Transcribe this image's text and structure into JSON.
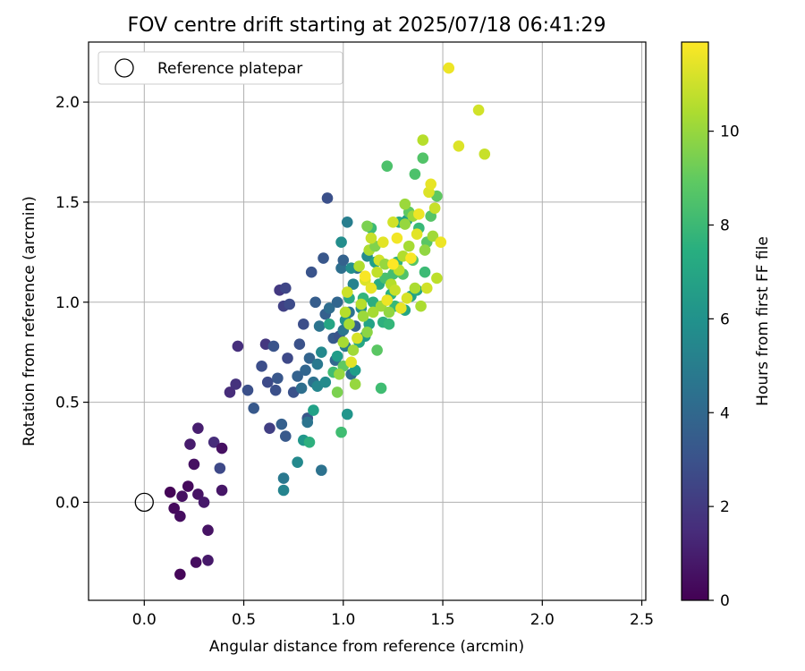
{
  "chart_data": {
    "type": "scatter",
    "title": "FOV centre drift starting at 2025/07/18 06:41:29",
    "xlabel": "Angular distance from reference (arcmin)",
    "ylabel": "Rotation from reference (arcmin)",
    "xlim": [
      -0.28,
      2.52
    ],
    "ylim": [
      -0.49,
      2.3
    ],
    "xticks": [
      "0.0",
      "0.5",
      "1.0",
      "1.5",
      "2.0",
      "2.5"
    ],
    "yticks": [
      "0.0",
      "0.5",
      "1.0",
      "1.5",
      "2.0"
    ],
    "grid": true,
    "legend": {
      "placement": "top-left",
      "entries": [
        "Reference platepar"
      ]
    },
    "reference_point": {
      "x": 0.0,
      "y": 0.0
    },
    "colorbar": {
      "label": "Hours from first FF file",
      "range": [
        0,
        11.9
      ],
      "ticks": [
        "0",
        "2",
        "4",
        "6",
        "8",
        "10"
      ],
      "colormap": "viridis"
    },
    "points": [
      [
        0.13,
        0.05,
        0.1
      ],
      [
        0.15,
        -0.03,
        0.3
      ],
      [
        0.18,
        -0.07,
        0.4
      ],
      [
        0.19,
        0.03,
        0.5
      ],
      [
        0.22,
        0.08,
        0.3
      ],
      [
        0.27,
        0.04,
        0.6
      ],
      [
        0.3,
        0.0,
        0.8
      ],
      [
        0.32,
        -0.14,
        0.6
      ],
      [
        0.26,
        -0.3,
        0.4
      ],
      [
        0.32,
        -0.29,
        0.8
      ],
      [
        0.18,
        -0.36,
        0.2
      ],
      [
        0.39,
        0.06,
        0.7
      ],
      [
        0.25,
        0.19,
        0.5
      ],
      [
        0.23,
        0.29,
        0.9
      ],
      [
        0.27,
        0.37,
        1.0
      ],
      [
        0.35,
        0.3,
        1.5
      ],
      [
        0.39,
        0.27,
        0.5
      ],
      [
        0.38,
        0.17,
        2.6
      ],
      [
        0.43,
        0.55,
        1.5
      ],
      [
        0.46,
        0.59,
        1.7
      ],
      [
        0.47,
        0.78,
        1.6
      ],
      [
        0.52,
        0.56,
        2.9
      ],
      [
        0.55,
        0.47,
        3.3
      ],
      [
        0.59,
        0.68,
        2.8
      ],
      [
        0.61,
        0.79,
        1.9
      ],
      [
        0.62,
        0.6,
        2.7
      ],
      [
        0.63,
        0.37,
        2.2
      ],
      [
        0.65,
        0.78,
        3.1
      ],
      [
        0.66,
        0.56,
        2.9
      ],
      [
        0.67,
        0.62,
        3.2
      ],
      [
        0.68,
        1.06,
        2.0
      ],
      [
        0.69,
        0.39,
        3.6
      ],
      [
        0.7,
        0.98,
        2.3
      ],
      [
        0.71,
        0.33,
        3.3
      ],
      [
        0.71,
        1.07,
        2.5
      ],
      [
        0.72,
        0.72,
        2.6
      ],
      [
        0.73,
        0.99,
        2.7
      ],
      [
        0.75,
        0.55,
        3.0
      ],
      [
        0.77,
        0.63,
        3.7
      ],
      [
        0.78,
        0.79,
        3.0
      ],
      [
        0.79,
        0.57,
        4.3
      ],
      [
        0.8,
        0.89,
        2.8
      ],
      [
        0.81,
        0.66,
        3.9
      ],
      [
        0.82,
        0.42,
        3.2
      ],
      [
        0.83,
        0.72,
        3.8
      ],
      [
        0.84,
        1.15,
        3.1
      ],
      [
        0.85,
        0.6,
        4.4
      ],
      [
        0.86,
        1.0,
        3.5
      ],
      [
        0.87,
        0.69,
        4.8
      ],
      [
        0.88,
        0.88,
        4.6
      ],
      [
        0.89,
        0.16,
        4.5
      ],
      [
        0.9,
        1.22,
        3.2
      ],
      [
        0.91,
        0.94,
        3.6
      ],
      [
        0.92,
        1.52,
        2.9
      ],
      [
        0.93,
        0.97,
        4.2
      ],
      [
        0.95,
        0.82,
        3.4
      ],
      [
        0.96,
        0.71,
        4.0
      ],
      [
        0.97,
        1.0,
        3.9
      ],
      [
        0.98,
        0.83,
        3.1
      ],
      [
        0.99,
        1.17,
        4.3
      ],
      [
        1.0,
        0.86,
        4.7
      ],
      [
        1.0,
        1.21,
        3.7
      ],
      [
        1.01,
        0.78,
        4.9
      ],
      [
        1.02,
        1.4,
        5.1
      ],
      [
        1.03,
        0.95,
        4.5
      ],
      [
        1.04,
        0.64,
        4.2
      ],
      [
        1.05,
        1.09,
        5.3
      ],
      [
        1.06,
        0.88,
        3.6
      ],
      [
        1.07,
        1.17,
        4.4
      ],
      [
        0.7,
        0.06,
        5.4
      ],
      [
        0.7,
        0.12,
        4.8
      ],
      [
        0.77,
        0.2,
        5.6
      ],
      [
        0.8,
        0.31,
        6.3
      ],
      [
        0.82,
        0.4,
        4.6
      ],
      [
        0.83,
        0.3,
        7.5
      ],
      [
        0.85,
        0.46,
        6.8
      ],
      [
        0.87,
        0.58,
        5.5
      ],
      [
        0.89,
        0.75,
        5.6
      ],
      [
        0.91,
        0.6,
        5.7
      ],
      [
        0.93,
        0.89,
        7.0
      ],
      [
        0.95,
        0.65,
        8.2
      ],
      [
        0.97,
        0.73,
        6.5
      ],
      [
        0.99,
        1.3,
        5.8
      ],
      [
        1.0,
        0.68,
        8.9
      ],
      [
        1.01,
        0.91,
        6.1
      ],
      [
        1.02,
        0.44,
        6.2
      ],
      [
        1.03,
        1.02,
        7.2
      ],
      [
        1.04,
        1.17,
        5.9
      ],
      [
        1.06,
        0.66,
        6.6
      ],
      [
        1.08,
        0.8,
        7.1
      ],
      [
        1.09,
        0.97,
        6.0
      ],
      [
        1.1,
        1.02,
        7.8
      ],
      [
        1.11,
        0.83,
        6.4
      ],
      [
        1.12,
        1.23,
        5.7
      ],
      [
        1.13,
        0.89,
        6.9
      ],
      [
        1.14,
        1.37,
        8.1
      ],
      [
        1.15,
        1.0,
        7.4
      ],
      [
        1.16,
        1.2,
        6.7
      ],
      [
        1.17,
        0.76,
        8.8
      ],
      [
        1.18,
        1.09,
        7.3
      ],
      [
        1.19,
        0.57,
        8.2
      ],
      [
        1.2,
        0.9,
        7.5
      ],
      [
        1.21,
        1.12,
        8.4
      ],
      [
        1.22,
        1.68,
        8.5
      ],
      [
        1.23,
        0.89,
        7.9
      ],
      [
        1.24,
        1.04,
        7.6
      ],
      [
        1.25,
        1.14,
        8.3
      ],
      [
        1.26,
        0.98,
        8.0
      ],
      [
        1.27,
        1.2,
        7.7
      ],
      [
        1.28,
        1.4,
        7.2
      ],
      [
        1.3,
        1.14,
        8.6
      ],
      [
        1.31,
        0.96,
        7.0
      ],
      [
        1.32,
        1.41,
        6.6
      ],
      [
        1.33,
        1.45,
        8.9
      ],
      [
        1.34,
        1.03,
        6.8
      ],
      [
        1.35,
        1.21,
        8.7
      ],
      [
        1.36,
        1.64,
        8.5
      ],
      [
        1.37,
        1.06,
        7.1
      ],
      [
        1.38,
        1.37,
        8.0
      ],
      [
        1.4,
        1.72,
        8.6
      ],
      [
        1.41,
        1.15,
        8.1
      ],
      [
        1.42,
        1.3,
        8.8
      ],
      [
        1.44,
        1.43,
        8.7
      ],
      [
        1.47,
        1.53,
        8.9
      ],
      [
        0.97,
        0.55,
        9.5
      ],
      [
        0.99,
        0.35,
        8.2
      ],
      [
        0.98,
        0.64,
        10.0
      ],
      [
        1.0,
        0.8,
        10.3
      ],
      [
        1.01,
        0.95,
        10.6
      ],
      [
        1.02,
        1.05,
        11.0
      ],
      [
        1.03,
        0.89,
        10.3
      ],
      [
        1.04,
        0.7,
        11.4
      ],
      [
        1.05,
        0.76,
        10.2
      ],
      [
        1.06,
        0.59,
        10.0
      ],
      [
        1.07,
        0.82,
        11.2
      ],
      [
        1.08,
        1.18,
        10.5
      ],
      [
        1.09,
        0.99,
        10.6
      ],
      [
        1.1,
        0.93,
        10.1
      ],
      [
        1.11,
        1.11,
        11.3
      ],
      [
        1.12,
        0.85,
        9.8
      ],
      [
        1.13,
        1.26,
        10.4
      ],
      [
        1.14,
        1.07,
        11.5
      ],
      [
        1.15,
        0.95,
        10.3
      ],
      [
        1.16,
        1.28,
        9.6
      ],
      [
        1.17,
        1.15,
        10.8
      ],
      [
        1.18,
        1.21,
        11.1
      ],
      [
        1.19,
        0.98,
        10.2
      ],
      [
        1.2,
        1.3,
        11.4
      ],
      [
        1.21,
        1.19,
        10.0
      ],
      [
        1.22,
        1.01,
        11.6
      ],
      [
        1.23,
        0.95,
        9.9
      ],
      [
        1.24,
        1.09,
        10.6
      ],
      [
        1.25,
        1.4,
        11.1
      ],
      [
        1.26,
        1.06,
        10.9
      ],
      [
        1.27,
        1.32,
        11.7
      ],
      [
        1.28,
        1.16,
        10.7
      ],
      [
        1.29,
        0.97,
        11.5
      ],
      [
        1.3,
        1.23,
        10.5
      ],
      [
        1.31,
        1.39,
        10.0
      ],
      [
        1.32,
        1.02,
        11.2
      ],
      [
        1.33,
        1.28,
        10.3
      ],
      [
        1.34,
        1.22,
        11.8
      ],
      [
        1.35,
        1.43,
        10.1
      ],
      [
        1.36,
        1.07,
        10.4
      ],
      [
        1.37,
        1.34,
        11.4
      ],
      [
        1.38,
        1.44,
        11.6
      ],
      [
        1.39,
        0.98,
        10.4
      ],
      [
        1.4,
        1.81,
        10.6
      ],
      [
        1.41,
        1.26,
        9.9
      ],
      [
        1.42,
        1.07,
        11.1
      ],
      [
        1.43,
        1.55,
        11.3
      ],
      [
        1.44,
        1.59,
        11.5
      ],
      [
        1.45,
        1.33,
        10.2
      ],
      [
        1.46,
        1.47,
        10.9
      ],
      [
        1.47,
        1.12,
        10.7
      ],
      [
        1.49,
        1.3,
        11.6
      ],
      [
        1.31,
        1.49,
        10.1
      ],
      [
        1.11,
        1.13,
        11.8
      ],
      [
        1.14,
        1.32,
        10.9
      ],
      [
        1.25,
        1.19,
        11.9
      ],
      [
        1.12,
        1.38,
        9.5
      ],
      [
        1.53,
        2.17,
        11.6
      ],
      [
        1.58,
        1.78,
        11.3
      ],
      [
        1.68,
        1.96,
        11.1
      ],
      [
        1.71,
        1.74,
        10.9
      ]
    ]
  }
}
